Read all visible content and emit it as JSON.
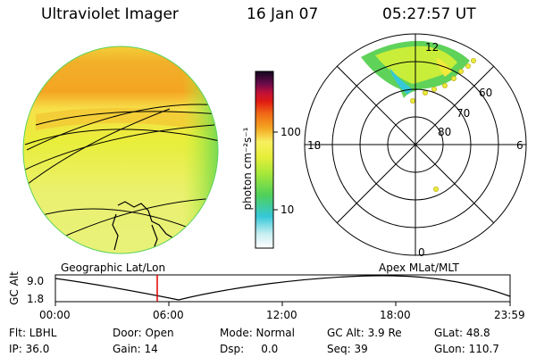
{
  "header": {
    "instrument": "Ultraviolet Imager",
    "date": "16 Jan 07",
    "time": "05:27:57 UT"
  },
  "colorbar": {
    "label": "photon cm⁻²s⁻¹",
    "ticks": [
      "100",
      "10"
    ]
  },
  "polar_plot": {
    "mlt_labels": {
      "top": "12",
      "left": "18",
      "right": "6",
      "bottom": "0"
    },
    "lat_labels": [
      "60",
      "70",
      "80"
    ]
  },
  "timeline": {
    "left_label": "Geographic Lat/Lon",
    "right_label": "Apex MLat/MLT",
    "y_axis_title": "GC Alt",
    "y_ticks": [
      "9.0",
      "1.8"
    ],
    "x_ticks": [
      "00:00",
      "06:00",
      "12:00",
      "18:00",
      "23:59"
    ]
  },
  "info": {
    "row1": {
      "filter": "Flt: LBHL",
      "door": "Door: Open",
      "mode": "Mode: Normal",
      "gc_alt": "GC Alt: 3.9 Re",
      "glat": "GLat: 48.8"
    },
    "row2": {
      "ip": "IP: 36.0",
      "gain": "Gain: 14",
      "dsp": "Dsp:     0.0",
      "seq": "Seq: 39",
      "glon": "GLon: 110.7"
    }
  },
  "colors": {
    "aurora_orange": "#f6a21a",
    "aurora_yellow": "#f0ea3a",
    "aurora_lime": "#c8ee3a",
    "aurora_green": "#5fd25a",
    "aurora_cyan": "#35c8d8",
    "marker_red": "#e00000"
  }
}
